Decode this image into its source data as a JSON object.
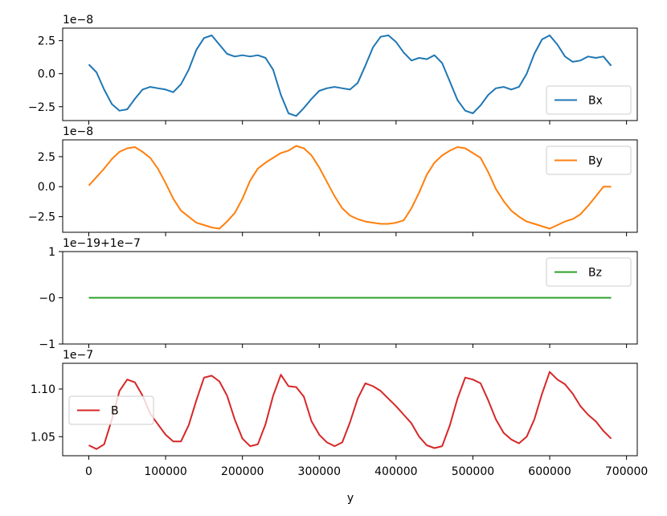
{
  "chart_data": [
    {
      "type": "line",
      "offset_label": "1e−8",
      "xlim": [
        -34000,
        714000
      ],
      "ylim": [
        -3.55,
        3.45
      ],
      "yticks": [
        {
          "v": 2.5,
          "label": "2.5"
        },
        {
          "v": 0.0,
          "label": "0.0"
        },
        {
          "v": -2.5,
          "label": "−2.5"
        }
      ],
      "legend": "lower-right",
      "series": [
        {
          "name": "Bx",
          "color": "#1f77b4",
          "x": [
            0,
            10000,
            20000,
            30000,
            40000,
            50000,
            60000,
            70000,
            80000,
            90000,
            100000,
            110000,
            120000,
            130000,
            140000,
            150000,
            160000,
            170000,
            180000,
            190000,
            200000,
            210000,
            220000,
            230000,
            240000,
            250000,
            260000,
            270000,
            280000,
            290000,
            300000,
            310000,
            320000,
            330000,
            340000,
            350000,
            360000,
            370000,
            380000,
            390000,
            400000,
            410000,
            420000,
            430000,
            440000,
            450000,
            460000,
            470000,
            480000,
            490000,
            500000,
            510000,
            520000,
            530000,
            540000,
            550000,
            560000,
            570000,
            580000,
            590000,
            600000,
            610000,
            620000,
            630000,
            640000,
            650000,
            660000,
            670000,
            680000
          ],
          "values": [
            0.7,
            0.1,
            -1.2,
            -2.3,
            -2.8,
            -2.7,
            -1.9,
            -1.2,
            -1.0,
            -1.1,
            -1.2,
            -1.4,
            -0.8,
            0.3,
            1.8,
            2.7,
            2.9,
            2.2,
            1.5,
            1.3,
            1.4,
            1.3,
            1.4,
            1.2,
            0.3,
            -1.6,
            -3.0,
            -3.2,
            -2.6,
            -1.9,
            -1.3,
            -1.1,
            -1.0,
            -1.1,
            -1.2,
            -0.7,
            0.6,
            2.0,
            2.8,
            2.9,
            2.4,
            1.6,
            1.0,
            1.2,
            1.1,
            1.4,
            0.8,
            -0.6,
            -2.0,
            -2.8,
            -3.0,
            -2.4,
            -1.6,
            -1.1,
            -1.0,
            -1.2,
            -1.0,
            0.0,
            1.5,
            2.6,
            2.9,
            2.2,
            1.3,
            0.9,
            1.0,
            1.3,
            1.2,
            1.3,
            0.6
          ]
        }
      ]
    },
    {
      "type": "line",
      "offset_label": "1e−8",
      "xlim": [
        -34000,
        714000
      ],
      "ylim": [
        -3.8,
        3.9
      ],
      "yticks": [
        {
          "v": 2.5,
          "label": "2.5"
        },
        {
          "v": 0.0,
          "label": "0.0"
        },
        {
          "v": -2.5,
          "label": "−2.5"
        }
      ],
      "legend": "upper-right",
      "series": [
        {
          "name": "By",
          "color": "#ff7f0e",
          "x": [
            0,
            10000,
            20000,
            30000,
            40000,
            50000,
            60000,
            70000,
            80000,
            90000,
            100000,
            110000,
            120000,
            130000,
            140000,
            150000,
            160000,
            170000,
            180000,
            190000,
            200000,
            210000,
            220000,
            230000,
            240000,
            250000,
            260000,
            270000,
            280000,
            290000,
            300000,
            310000,
            320000,
            330000,
            340000,
            350000,
            360000,
            370000,
            380000,
            390000,
            400000,
            410000,
            420000,
            430000,
            440000,
            450000,
            460000,
            470000,
            480000,
            490000,
            500000,
            510000,
            520000,
            530000,
            540000,
            550000,
            560000,
            570000,
            580000,
            590000,
            600000,
            610000,
            620000,
            630000,
            640000,
            650000,
            660000,
            670000,
            680000
          ],
          "values": [
            0.1,
            0.8,
            1.5,
            2.3,
            2.9,
            3.2,
            3.3,
            2.9,
            2.4,
            1.5,
            0.3,
            -1.0,
            -2.0,
            -2.5,
            -3.0,
            -3.2,
            -3.4,
            -3.5,
            -2.9,
            -2.2,
            -1.0,
            0.5,
            1.5,
            2.0,
            2.4,
            2.8,
            3.0,
            3.4,
            3.2,
            2.6,
            1.6,
            0.4,
            -0.8,
            -1.8,
            -2.4,
            -2.7,
            -2.9,
            -3.0,
            -3.1,
            -3.1,
            -3.0,
            -2.8,
            -1.8,
            -0.5,
            1.0,
            2.0,
            2.6,
            3.0,
            3.3,
            3.2,
            2.8,
            2.4,
            1.2,
            -0.2,
            -1.2,
            -2.0,
            -2.5,
            -2.9,
            -3.1,
            -3.3,
            -3.5,
            -3.2,
            -2.9,
            -2.7,
            -2.3,
            -1.6,
            -0.8,
            0.0,
            0.0
          ]
        }
      ]
    },
    {
      "type": "line",
      "offset_label": "1e−19+1e−7",
      "xlim": [
        -34000,
        714000
      ],
      "ylim": [
        -1,
        1
      ],
      "yticks": [
        {
          "v": 1,
          "label": "1"
        },
        {
          "v": 0,
          "label": "−0"
        },
        {
          "v": -1,
          "label": "−1"
        }
      ],
      "legend": "upper-right",
      "series": [
        {
          "name": "Bz",
          "color": "#2ca02c",
          "x": [
            0,
            680000
          ],
          "values": [
            0,
            0
          ]
        }
      ]
    },
    {
      "type": "line",
      "offset_label": "1e−7",
      "xlim": [
        -34000,
        714000
      ],
      "ylim": [
        1.03,
        1.127
      ],
      "yticks": [
        {
          "v": 1.1,
          "label": "1.10"
        },
        {
          "v": 1.05,
          "label": "1.05"
        }
      ],
      "legend": "center-left",
      "xticks": [
        {
          "v": 0,
          "label": "0"
        },
        {
          "v": 100000,
          "label": "100000"
        },
        {
          "v": 200000,
          "label": "200000"
        },
        {
          "v": 300000,
          "label": "300000"
        },
        {
          "v": 400000,
          "label": "400000"
        },
        {
          "v": 500000,
          "label": "500000"
        },
        {
          "v": 600000,
          "label": "600000"
        },
        {
          "v": 700000,
          "label": "700000"
        }
      ],
      "xlabel": "y",
      "series": [
        {
          "name": "B",
          "color": "#d62728",
          "x": [
            0,
            10000,
            20000,
            30000,
            40000,
            50000,
            60000,
            70000,
            80000,
            90000,
            100000,
            110000,
            120000,
            130000,
            140000,
            150000,
            160000,
            170000,
            180000,
            190000,
            200000,
            210000,
            220000,
            230000,
            240000,
            250000,
            260000,
            270000,
            280000,
            290000,
            300000,
            310000,
            320000,
            330000,
            340000,
            350000,
            360000,
            370000,
            380000,
            390000,
            400000,
            410000,
            420000,
            430000,
            440000,
            450000,
            460000,
            470000,
            480000,
            490000,
            500000,
            510000,
            520000,
            530000,
            540000,
            550000,
            560000,
            570000,
            580000,
            590000,
            600000,
            610000,
            620000,
            630000,
            640000,
            650000,
            660000,
            670000,
            680000
          ],
          "values": [
            1.041,
            1.037,
            1.042,
            1.068,
            1.098,
            1.11,
            1.107,
            1.093,
            1.074,
            1.063,
            1.052,
            1.045,
            1.045,
            1.062,
            1.088,
            1.112,
            1.114,
            1.108,
            1.093,
            1.068,
            1.048,
            1.04,
            1.042,
            1.063,
            1.093,
            1.115,
            1.103,
            1.102,
            1.092,
            1.066,
            1.052,
            1.044,
            1.04,
            1.044,
            1.065,
            1.09,
            1.106,
            1.103,
            1.098,
            1.09,
            1.082,
            1.073,
            1.064,
            1.05,
            1.041,
            1.038,
            1.04,
            1.062,
            1.09,
            1.112,
            1.11,
            1.106,
            1.088,
            1.068,
            1.054,
            1.047,
            1.043,
            1.05,
            1.068,
            1.095,
            1.118,
            1.11,
            1.105,
            1.095,
            1.082,
            1.073,
            1.066,
            1.056,
            1.048
          ]
        }
      ]
    }
  ]
}
